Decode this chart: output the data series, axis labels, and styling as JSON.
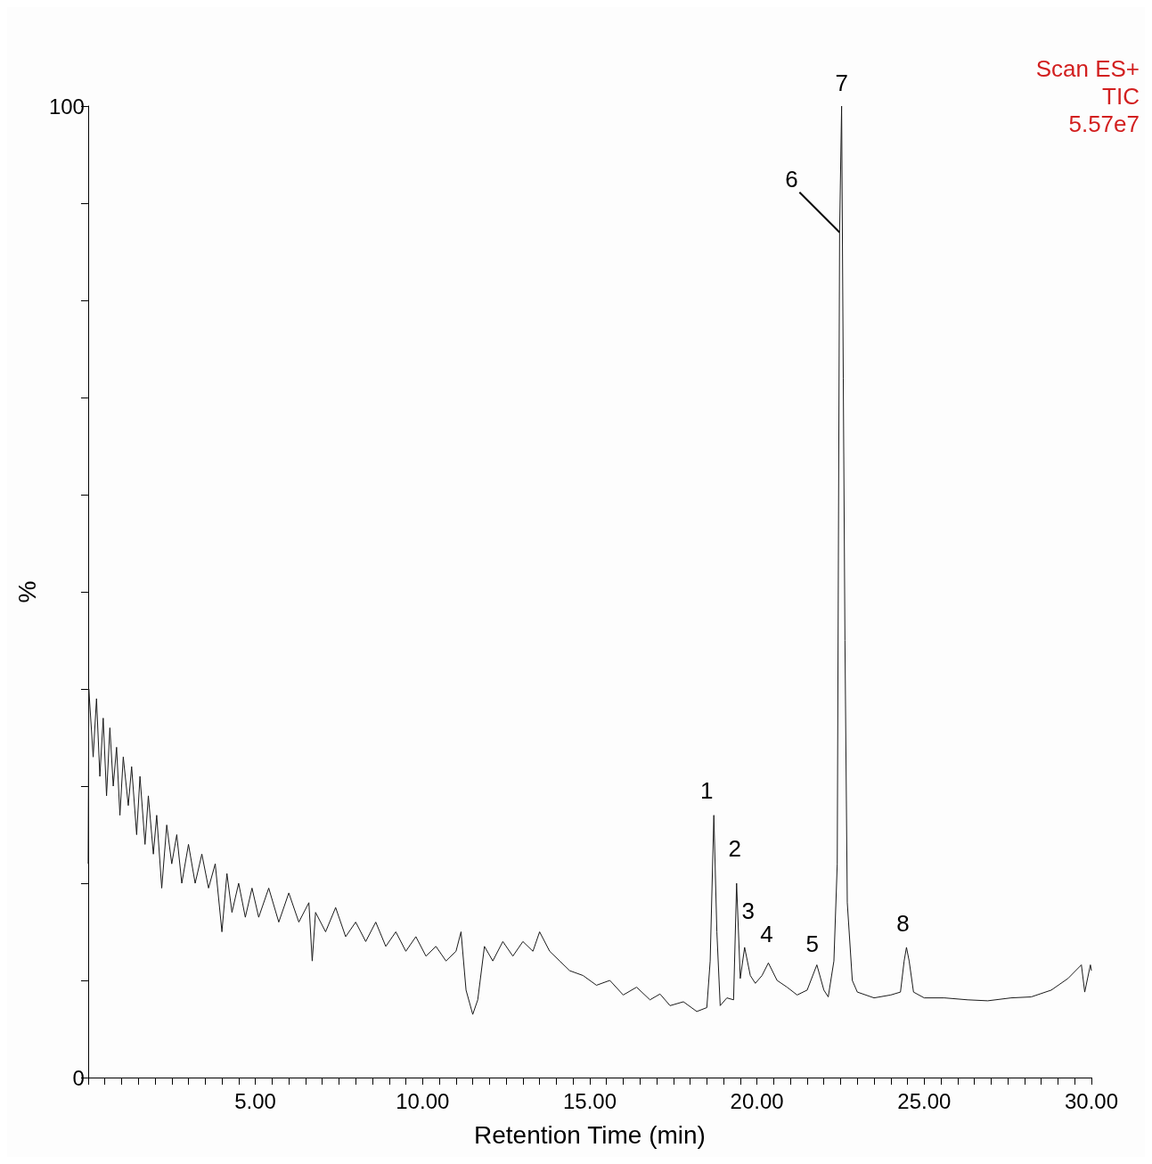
{
  "chart_data": {
    "type": "line",
    "xlabel": "Retention Time (min)",
    "ylabel": "%",
    "annotations": [
      "Scan ES+",
      "TIC",
      "5.57e7",
      {
        "text": "1",
        "x": 18.71,
        "y": 27
      },
      {
        "text": "2",
        "x": 19.39,
        "y": 20
      },
      {
        "text": "3",
        "x": 19.63,
        "y": 13.4
      },
      {
        "text": "4",
        "x": 20.34,
        "y": 11.8
      },
      {
        "text": "5",
        "x": 21.79,
        "y": 11.6
      },
      {
        "text": "6",
        "x": 22.47,
        "y": 87
      },
      {
        "text": "7",
        "x": 22.53,
        "y": 100
      },
      {
        "text": "8",
        "x": 24.47,
        "y": 13.4
      }
    ],
    "xlim": [
      0,
      30
    ],
    "ylim": [
      0,
      100
    ],
    "xticks": [
      {
        "value": 0,
        "label": null
      },
      {
        "value": 0.5,
        "label": null
      },
      {
        "value": 1,
        "label": null
      },
      {
        "value": 1.5,
        "label": null
      },
      {
        "value": 2,
        "label": null
      },
      {
        "value": 2.5,
        "label": null
      },
      {
        "value": 3,
        "label": null
      },
      {
        "value": 3.5,
        "label": null
      },
      {
        "value": 4,
        "label": null
      },
      {
        "value": 4.5,
        "label": null
      },
      {
        "value": 5,
        "label": "5.00"
      },
      {
        "value": 5.5,
        "label": null
      },
      {
        "value": 6,
        "label": null
      },
      {
        "value": 6.5,
        "label": null
      },
      {
        "value": 7,
        "label": null
      },
      {
        "value": 7.5,
        "label": null
      },
      {
        "value": 8,
        "label": null
      },
      {
        "value": 8.5,
        "label": null
      },
      {
        "value": 9,
        "label": null
      },
      {
        "value": 9.5,
        "label": null
      },
      {
        "value": 10,
        "label": "10.00"
      },
      {
        "value": 10.5,
        "label": null
      },
      {
        "value": 11,
        "label": null
      },
      {
        "value": 11.5,
        "label": null
      },
      {
        "value": 12,
        "label": null
      },
      {
        "value": 12.5,
        "label": null
      },
      {
        "value": 13,
        "label": null
      },
      {
        "value": 13.5,
        "label": null
      },
      {
        "value": 14,
        "label": null
      },
      {
        "value": 14.5,
        "label": null
      },
      {
        "value": 15,
        "label": "15.00"
      },
      {
        "value": 15.5,
        "label": null
      },
      {
        "value": 16,
        "label": null
      },
      {
        "value": 16.5,
        "label": null
      },
      {
        "value": 17,
        "label": null
      },
      {
        "value": 17.5,
        "label": null
      },
      {
        "value": 18,
        "label": null
      },
      {
        "value": 18.5,
        "label": null
      },
      {
        "value": 19,
        "label": null
      },
      {
        "value": 19.5,
        "label": null
      },
      {
        "value": 20,
        "label": "20.00"
      },
      {
        "value": 20.5,
        "label": null
      },
      {
        "value": 21,
        "label": null
      },
      {
        "value": 21.5,
        "label": null
      },
      {
        "value": 22,
        "label": null
      },
      {
        "value": 22.5,
        "label": null
      },
      {
        "value": 23,
        "label": null
      },
      {
        "value": 23.5,
        "label": null
      },
      {
        "value": 24,
        "label": null
      },
      {
        "value": 24.5,
        "label": null
      },
      {
        "value": 25,
        "label": "25.00"
      },
      {
        "value": 25.5,
        "label": null
      },
      {
        "value": 26,
        "label": null
      },
      {
        "value": 26.5,
        "label": null
      },
      {
        "value": 27,
        "label": null
      },
      {
        "value": 27.5,
        "label": null
      },
      {
        "value": 28,
        "label": null
      },
      {
        "value": 28.5,
        "label": null
      },
      {
        "value": 29,
        "label": null
      },
      {
        "value": 29.5,
        "label": null
      },
      {
        "value": 30,
        "label": "30.00"
      }
    ],
    "yticks": [
      0,
      {
        "value": 10,
        "label": null
      },
      {
        "value": 20,
        "label": null
      },
      {
        "value": 30,
        "label": null
      },
      {
        "value": 40,
        "label": null
      },
      {
        "value": 50,
        "label": null
      },
      {
        "value": 60,
        "label": null
      },
      {
        "value": 70,
        "label": null
      },
      {
        "value": 80,
        "label": null
      },
      {
        "value": 90,
        "label": null
      },
      100
    ],
    "grid": false,
    "marker": "none",
    "line_style": "solid",
    "series": [
      {
        "color": "#1a1a1a",
        "x": [
          0,
          0.02,
          0.15,
          0.25,
          0.35,
          0.45,
          0.55,
          0.65,
          0.75,
          0.85,
          0.95,
          1.05,
          1.2,
          1.3,
          1.45,
          1.55,
          1.7,
          1.8,
          1.95,
          2.05,
          2.2,
          2.35,
          2.5,
          2.65,
          2.8,
          3.0,
          3.2,
          3.4,
          3.6,
          3.8,
          4.0,
          4.15,
          4.3,
          4.5,
          4.7,
          4.9,
          5.1,
          5.4,
          5.7,
          6.0,
          6.3,
          6.6,
          6.7,
          6.8,
          7.1,
          7.4,
          7.7,
          8.0,
          8.3,
          8.6,
          8.9,
          9.2,
          9.5,
          9.8,
          10.1,
          10.4,
          10.7,
          11.0,
          11.15,
          11.3,
          11.5,
          11.65,
          11.85,
          12.1,
          12.4,
          12.7,
          13.0,
          13.3,
          13.5,
          13.8,
          14.1,
          14.4,
          14.8,
          15.2,
          15.6,
          16.0,
          16.4,
          16.8,
          17.1,
          17.4,
          17.8,
          18.2,
          18.5,
          18.6,
          18.71,
          18.8,
          18.9,
          19.1,
          19.3,
          19.39,
          19.5,
          19.63,
          19.8,
          19.95,
          20.15,
          20.34,
          20.6,
          20.9,
          21.2,
          21.5,
          21.79,
          22.0,
          22.13,
          22.3,
          22.4,
          22.47,
          22.53,
          22.58,
          22.63,
          22.7,
          22.85,
          23.0,
          23.5,
          24.0,
          24.29,
          24.4,
          24.47,
          24.55,
          24.68,
          25.0,
          25.6,
          26.3,
          26.9,
          27.6,
          28.2,
          28.8,
          29.3,
          29.7,
          29.8,
          29.97,
          30
        ],
        "values": [
          22,
          40,
          33,
          39,
          31,
          37,
          29,
          36,
          30,
          34,
          27,
          33,
          28,
          32,
          25,
          31,
          24,
          29,
          23,
          27,
          19.5,
          26,
          22,
          25,
          20,
          24,
          20,
          23,
          19.5,
          22,
          15,
          21,
          17,
          20,
          16.5,
          19.5,
          16.5,
          19.5,
          16,
          19,
          16,
          18,
          12,
          17,
          15,
          17.5,
          14.5,
          16,
          14,
          16,
          13.5,
          15,
          13,
          14.5,
          12.5,
          13.5,
          12,
          13,
          15,
          9,
          6.5,
          8,
          13.5,
          12,
          14,
          12.5,
          14,
          13,
          15,
          13,
          12,
          11,
          10.5,
          9.5,
          10,
          8.5,
          9.3,
          8,
          8.6,
          7.4,
          7.8,
          6.8,
          7.2,
          12,
          27,
          15,
          7.4,
          8.2,
          8,
          20,
          10.2,
          13.4,
          10.5,
          9.7,
          10.5,
          11.8,
          10,
          9.3,
          8.5,
          9,
          11.6,
          9,
          8.3,
          12,
          22,
          87,
          100,
          72,
          45,
          18,
          10,
          8.8,
          8.2,
          8.5,
          8.8,
          12,
          13.4,
          12,
          8.8,
          8.2,
          8.2,
          8,
          7.9,
          8.2,
          8.3,
          9,
          10.2,
          11.6,
          8.8,
          11.6,
          11
        ]
      }
    ]
  }
}
